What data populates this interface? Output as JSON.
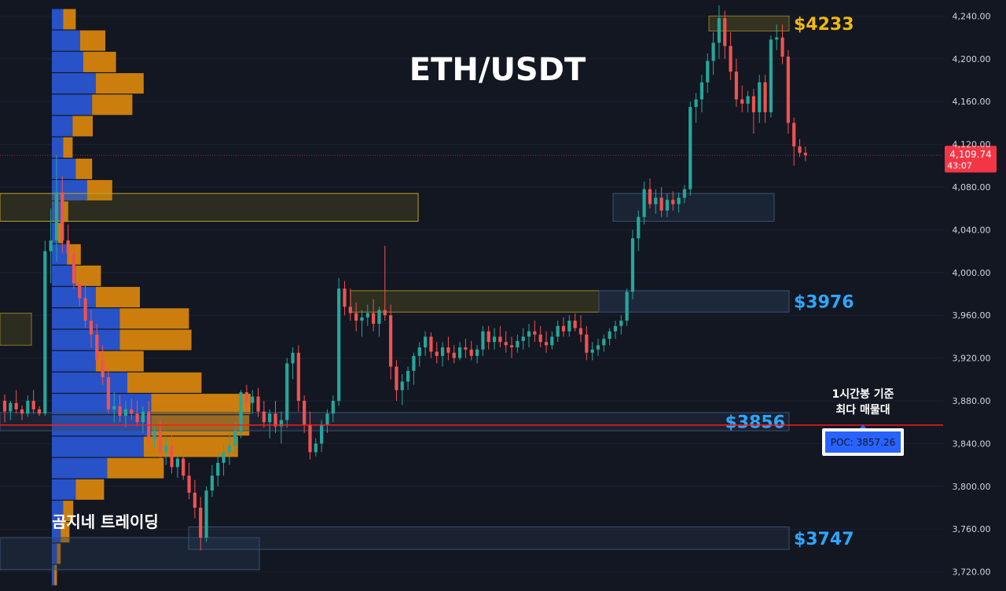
{
  "chart_data": {
    "type": "candlestick",
    "title": "ETH/USDT",
    "watermark": "곰지네 트레이딩",
    "y_axis": {
      "min": 3705,
      "max": 4255,
      "ticks": [
        4240,
        4200,
        4160,
        4120,
        4080,
        4040,
        4000,
        3960,
        3920,
        3880,
        3840,
        3800,
        3760,
        3720
      ],
      "tick_labels": [
        "4,240.00",
        "4,200.00",
        "4,160.00",
        "4,120.00",
        "4,080.00",
        "4,040.00",
        "4,000.00",
        "3,960.00",
        "3,920.00",
        "3,880.00",
        "3,840.00",
        "3,800.00",
        "3,760.00",
        "3,720.00"
      ]
    },
    "current_price": {
      "value": 4109.74,
      "label": "4,109.74",
      "countdown": "43:07",
      "color": "#f23645"
    },
    "poc_line": {
      "value": 3857.26,
      "color": "#ff1a1a"
    },
    "annotation": {
      "line1": "1시간봉 기준",
      "line2": "최다 매물대",
      "poc_label": "POC: 3857.26"
    },
    "levels": [
      {
        "label": "$4233",
        "low": 4226,
        "high": 4240,
        "color": "#f0b90b"
      },
      {
        "label": "$3976",
        "low": 3963,
        "high": 3983,
        "color": "#2ea6ff"
      },
      {
        "label": "$3856",
        "low": 3852,
        "high": 3869,
        "color": "#2ea6ff"
      },
      {
        "label": "$3747",
        "low": 3741,
        "high": 3762,
        "color": "#2ea6ff"
      }
    ],
    "zones": [
      {
        "low": 4048,
        "high": 4074,
        "kind": "yellow"
      },
      {
        "low": 4048,
        "high": 4074,
        "kind": "blue"
      },
      {
        "low": 3963,
        "high": 3983,
        "kind": "yellow"
      },
      {
        "low": 3722,
        "high": 3752,
        "kind": "blue"
      },
      {
        "low": 3932,
        "high": 3962,
        "kind": "yellow-edge"
      }
    ],
    "volume_profile": [
      {
        "price": 4237,
        "buy": 18,
        "sell": 20
      },
      {
        "price": 4217,
        "buy": 45,
        "sell": 40
      },
      {
        "price": 4197,
        "buy": 50,
        "sell": 52
      },
      {
        "price": 4177,
        "buy": 70,
        "sell": 76
      },
      {
        "price": 4157,
        "buy": 64,
        "sell": 64
      },
      {
        "price": 4137,
        "buy": 33,
        "sell": 32
      },
      {
        "price": 4117,
        "buy": 18,
        "sell": 15
      },
      {
        "price": 4097,
        "buy": 38,
        "sell": 26
      },
      {
        "price": 4077,
        "buy": 56,
        "sell": 40
      },
      {
        "price": 4057,
        "buy": 16,
        "sell": 10
      },
      {
        "price": 4037,
        "buy": 10,
        "sell": 8
      },
      {
        "price": 4017,
        "buy": 24,
        "sell": 22
      },
      {
        "price": 3997,
        "buy": 38,
        "sell": 40
      },
      {
        "price": 3977,
        "buy": 70,
        "sell": 70
      },
      {
        "price": 3957,
        "buy": 108,
        "sell": 110
      },
      {
        "price": 3937,
        "buy": 108,
        "sell": 114
      },
      {
        "price": 3917,
        "buy": 70,
        "sell": 76
      },
      {
        "price": 3897,
        "buy": 120,
        "sell": 118
      },
      {
        "price": 3877,
        "buy": 158,
        "sell": 158
      },
      {
        "price": 3857,
        "buy": 158,
        "sell": 156
      },
      {
        "price": 3837,
        "buy": 146,
        "sell": 150
      },
      {
        "price": 3817,
        "buy": 88,
        "sell": 90
      },
      {
        "price": 3797,
        "buy": 38,
        "sell": 45
      },
      {
        "price": 3777,
        "buy": 18,
        "sell": 16
      },
      {
        "price": 3757,
        "buy": 14,
        "sell": 14
      },
      {
        "price": 3737,
        "buy": 8,
        "sell": 6
      },
      {
        "price": 3717,
        "buy": 4,
        "sell": 4
      }
    ],
    "candles": [
      [
        3880,
        3886,
        3860,
        3870
      ],
      [
        3870,
        3880,
        3862,
        3878
      ],
      [
        3878,
        3890,
        3868,
        3872
      ],
      [
        3872,
        3876,
        3862,
        3868
      ],
      [
        3868,
        3885,
        3865,
        3880
      ],
      [
        3880,
        3890,
        3868,
        3872
      ],
      [
        3872,
        3875,
        3866,
        3868
      ],
      [
        3868,
        4030,
        3866,
        4020
      ],
      [
        4020,
        4060,
        3990,
        4030
      ],
      [
        4030,
        4110,
        4010,
        4075
      ],
      [
        4075,
        4090,
        4018,
        4030
      ],
      [
        4030,
        4045,
        4010,
        4018
      ],
      [
        4018,
        4025,
        3985,
        3990
      ],
      [
        3990,
        4000,
        3968,
        3976
      ],
      [
        3976,
        3990,
        3948,
        3955
      ],
      [
        3955,
        3965,
        3930,
        3942
      ],
      [
        3942,
        3952,
        3910,
        3918
      ],
      [
        3918,
        3932,
        3895,
        3902
      ],
      [
        3902,
        3912,
        3868,
        3872
      ],
      [
        3872,
        3888,
        3860,
        3875
      ],
      [
        3875,
        3885,
        3860,
        3866
      ],
      [
        3866,
        3880,
        3855,
        3872
      ],
      [
        3872,
        3882,
        3862,
        3868
      ],
      [
        3868,
        3880,
        3856,
        3860
      ],
      [
        3860,
        3875,
        3850,
        3870
      ],
      [
        3870,
        3880,
        3838,
        3844
      ],
      [
        3844,
        3858,
        3836,
        3852
      ],
      [
        3852,
        3862,
        3826,
        3832
      ],
      [
        3832,
        3845,
        3820,
        3838
      ],
      [
        3838,
        3848,
        3812,
        3818
      ],
      [
        3818,
        3830,
        3808,
        3826
      ],
      [
        3826,
        3836,
        3806,
        3810
      ],
      [
        3810,
        3822,
        3788,
        3794
      ],
      [
        3794,
        3806,
        3770,
        3780
      ],
      [
        3780,
        3790,
        3740,
        3752
      ],
      [
        3752,
        3800,
        3748,
        3796
      ],
      [
        3796,
        3820,
        3790,
        3810
      ],
      [
        3810,
        3830,
        3800,
        3822
      ],
      [
        3822,
        3840,
        3810,
        3832
      ],
      [
        3832,
        3850,
        3820,
        3838
      ],
      [
        3838,
        3860,
        3830,
        3852
      ],
      [
        3852,
        3890,
        3845,
        3888
      ],
      [
        3888,
        3895,
        3870,
        3878
      ],
      [
        3878,
        3890,
        3868,
        3884
      ],
      [
        3884,
        3892,
        3865,
        3870
      ],
      [
        3870,
        3880,
        3855,
        3860
      ],
      [
        3860,
        3872,
        3845,
        3868
      ],
      [
        3868,
        3880,
        3850,
        3856
      ],
      [
        3856,
        3870,
        3840,
        3862
      ],
      [
        3862,
        3920,
        3855,
        3915
      ],
      [
        3915,
        3930,
        3900,
        3925
      ],
      [
        3925,
        3932,
        3870,
        3880
      ],
      [
        3880,
        3885,
        3850,
        3858
      ],
      [
        3858,
        3870,
        3825,
        3832
      ],
      [
        3832,
        3845,
        3828,
        3840
      ],
      [
        3840,
        3862,
        3832,
        3858
      ],
      [
        3858,
        3872,
        3850,
        3868
      ],
      [
        3868,
        3885,
        3860,
        3880
      ],
      [
        3880,
        3995,
        3875,
        3985
      ],
      [
        3985,
        3992,
        3960,
        3968
      ],
      [
        3968,
        3985,
        3955,
        3962
      ],
      [
        3962,
        3972,
        3945,
        3955
      ],
      [
        3955,
        3965,
        3940,
        3958
      ],
      [
        3958,
        3970,
        3950,
        3962
      ],
      [
        3962,
        3975,
        3945,
        3952
      ],
      [
        3952,
        3968,
        3940,
        3965
      ],
      [
        3965,
        4025,
        3955,
        3960
      ],
      [
        3960,
        3970,
        3900,
        3912
      ],
      [
        3912,
        3918,
        3880,
        3890
      ],
      [
        3890,
        3905,
        3876,
        3898
      ],
      [
        3898,
        3912,
        3890,
        3908
      ],
      [
        3908,
        3925,
        3895,
        3922
      ],
      [
        3922,
        3935,
        3912,
        3930
      ],
      [
        3930,
        3945,
        3922,
        3940
      ],
      [
        3940,
        3944,
        3920,
        3926
      ],
      [
        3926,
        3935,
        3915,
        3922
      ],
      [
        3922,
        3935,
        3912,
        3930
      ],
      [
        3930,
        3940,
        3918,
        3925
      ],
      [
        3925,
        3932,
        3915,
        3920
      ],
      [
        3920,
        3935,
        3918,
        3930
      ],
      [
        3930,
        3938,
        3920,
        3928
      ],
      [
        3928,
        3936,
        3918,
        3922
      ],
      [
        3922,
        3932,
        3915,
        3928
      ],
      [
        3928,
        3950,
        3922,
        3945
      ],
      [
        3945,
        3950,
        3928,
        3935
      ],
      [
        3935,
        3948,
        3928,
        3940
      ],
      [
        3940,
        3950,
        3930,
        3935
      ],
      [
        3935,
        3945,
        3925,
        3932
      ],
      [
        3932,
        3940,
        3920,
        3930
      ],
      [
        3930,
        3942,
        3925,
        3936
      ],
      [
        3936,
        3948,
        3928,
        3940
      ],
      [
        3940,
        3952,
        3930,
        3945
      ],
      [
        3945,
        3955,
        3935,
        3942
      ],
      [
        3942,
        3950,
        3930,
        3935
      ],
      [
        3935,
        3945,
        3925,
        3932
      ],
      [
        3932,
        3945,
        3928,
        3940
      ],
      [
        3940,
        3955,
        3935,
        3950
      ],
      [
        3950,
        3958,
        3940,
        3945
      ],
      [
        3945,
        3960,
        3940,
        3955
      ],
      [
        3955,
        3962,
        3945,
        3948
      ],
      [
        3948,
        3960,
        3935,
        3942
      ],
      [
        3942,
        3950,
        3918,
        3925
      ],
      [
        3925,
        3935,
        3918,
        3928
      ],
      [
        3928,
        3938,
        3922,
        3932
      ],
      [
        3932,
        3942,
        3926,
        3938
      ],
      [
        3938,
        3948,
        3932,
        3945
      ],
      [
        3945,
        3955,
        3938,
        3950
      ],
      [
        3950,
        3960,
        3942,
        3955
      ],
      [
        3955,
        3985,
        3950,
        3982
      ],
      [
        3982,
        4040,
        3975,
        4032
      ],
      [
        4032,
        4058,
        4020,
        4052
      ],
      [
        4052,
        4085,
        4045,
        4078
      ],
      [
        4078,
        4088,
        4060,
        4064
      ],
      [
        4064,
        4078,
        4055,
        4070
      ],
      [
        4070,
        4080,
        4052,
        4058
      ],
      [
        4058,
        4074,
        4052,
        4068
      ],
      [
        4068,
        4076,
        4058,
        4064
      ],
      [
        4064,
        4075,
        4056,
        4070
      ],
      [
        4070,
        4082,
        4065,
        4078
      ],
      [
        4078,
        4160,
        4072,
        4155
      ],
      [
        4155,
        4168,
        4140,
        4162
      ],
      [
        4162,
        4185,
        4150,
        4178
      ],
      [
        4178,
        4205,
        4168,
        4198
      ],
      [
        4198,
        4225,
        4185,
        4215
      ],
      [
        4215,
        4250,
        4200,
        4238
      ],
      [
        4238,
        4245,
        4200,
        4212
      ],
      [
        4212,
        4225,
        4180,
        4188
      ],
      [
        4188,
        4200,
        4155,
        4162
      ],
      [
        4162,
        4175,
        4150,
        4158
      ],
      [
        4158,
        4170,
        4150,
        4165
      ],
      [
        4165,
        4172,
        4130,
        4150
      ],
      [
        4150,
        4185,
        4140,
        4178
      ],
      [
        4178,
        4185,
        4140,
        4150
      ],
      [
        4150,
        4222,
        4145,
        4218
      ],
      [
        4218,
        4232,
        4208,
        4220
      ],
      [
        4220,
        4232,
        4195,
        4202
      ],
      [
        4202,
        4208,
        4130,
        4140
      ],
      [
        4140,
        4145,
        4100,
        4118
      ],
      [
        4118,
        4125,
        4108,
        4112
      ],
      [
        4112,
        4118,
        4104,
        4109.74
      ]
    ]
  }
}
